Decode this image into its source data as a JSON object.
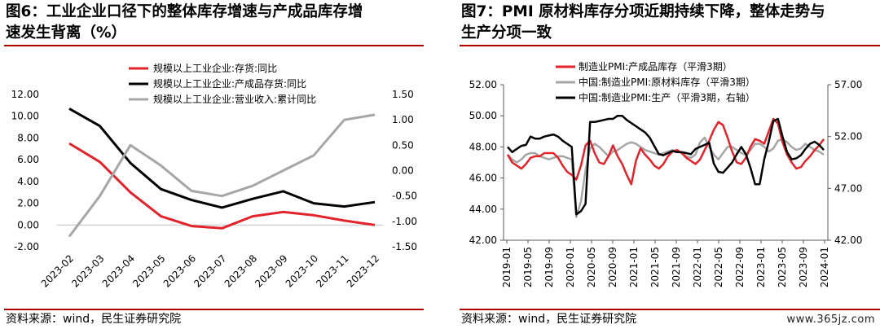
{
  "left": {
    "title_line1": "图6：工业企业口径下的整体库存增速与产成品库存增",
    "title_line2": "速发生背离（%）",
    "source": "资料来源：wind，民生证券研究院"
  },
  "right": {
    "title_line1": "图7：PMI  原材料库存分项近期持续下降，整体走势与",
    "title_line2": "生产分项一致",
    "source": "资料来源：wind，民生证券研究院"
  },
  "watermark": "www.365jz.com",
  "colors": {
    "red": "#e3232b",
    "black": "#000000",
    "gray": "#a6a6a6",
    "rule": "#b00000"
  },
  "chart_data": [
    {
      "type": "line",
      "x": [
        "2023-02",
        "2023-03",
        "2023-04",
        "2023-05",
        "2023-06",
        "2023-07",
        "2023-08",
        "2023-09",
        "2023-10",
        "2023-11",
        "2023-12"
      ],
      "y_left_ticks": [
        "-2.00",
        "0.00",
        "2.00",
        "4.00",
        "6.00",
        "8.00",
        "10.00",
        "12.00"
      ],
      "y_right_ticks": [
        "-1.50",
        "-1.00",
        "-0.50",
        "0.00",
        "0.50",
        "1.00",
        "1.50"
      ],
      "ylim_left": [
        -2,
        12
      ],
      "ylim_right": [
        -1.5,
        1.5
      ],
      "series": [
        {
          "name": "规模以上工业企业:存货:同比",
          "color": "red",
          "axis": "left",
          "values": [
            7.5,
            5.8,
            3.0,
            0.8,
            -0.1,
            -0.3,
            0.8,
            1.2,
            0.9,
            0.4,
            0.0
          ]
        },
        {
          "name": "规模以上工业企业:产成品存货:同比",
          "color": "black",
          "axis": "left",
          "values": [
            10.7,
            9.1,
            5.7,
            3.3,
            2.3,
            1.6,
            2.4,
            3.1,
            2.0,
            1.7,
            2.1
          ]
        },
        {
          "name": "规模以上工业企业:营业收入:累计同比",
          "color": "gray",
          "axis": "right",
          "values": [
            -1.3,
            -0.5,
            0.5,
            0.1,
            -0.4,
            -0.5,
            -0.3,
            0.0,
            0.3,
            1.0,
            1.1
          ]
        }
      ]
    },
    {
      "type": "line",
      "x_ticks": [
        "2019-01",
        "2019-05",
        "2019-09",
        "2020-01",
        "2020-05",
        "2020-09",
        "2021-01",
        "2021-05",
        "2021-09",
        "2022-01",
        "2022-05",
        "2022-09",
        "2023-01",
        "2023-05",
        "2023-09",
        "2024-01"
      ],
      "y_left_ticks": [
        "42.00",
        "44.00",
        "46.00",
        "48.00",
        "50.00",
        "52.00"
      ],
      "y_right_ticks": [
        "42.00",
        "47.00",
        "52.00",
        "57.00"
      ],
      "ylim_left": [
        42,
        52
      ],
      "ylim_right": [
        42,
        57
      ],
      "series": [
        {
          "name": "制造业PMI:产成品库存（平滑3期）",
          "color": "red",
          "axis": "left",
          "values": [
            47.5,
            47.0,
            46.8,
            46.6,
            46.9,
            47.3,
            47.4,
            47.4,
            47.6,
            47.6,
            47.6,
            47.3,
            46.8,
            46.4,
            46.2,
            45.9,
            46.8,
            48.1,
            48.4,
            47.6,
            47.0,
            46.9,
            47.4,
            48.1,
            47.4,
            46.9,
            46.2,
            45.6,
            47.1,
            47.9,
            47.5,
            47.2,
            46.8,
            46.6,
            46.9,
            47.4,
            47.7,
            47.8,
            47.6,
            47.3,
            47.1,
            46.9,
            47.2,
            47.8,
            48.4,
            49.1,
            49.6,
            49.4,
            48.6,
            47.7,
            47.0,
            46.9,
            47.3,
            48.0,
            48.5,
            48.4,
            48.2,
            49.0,
            49.8,
            49.5,
            48.3,
            47.5,
            47.0,
            46.6,
            46.7,
            47.1,
            47.4,
            47.8,
            48.1,
            48.5
          ]
        },
        {
          "name": "中国:制造业PMI:原材料库存（平滑3期）",
          "color": "gray",
          "axis": "left",
          "values": [
            47.5,
            47.2,
            47.0,
            47.2,
            47.5,
            47.6,
            47.6,
            47.4,
            47.3,
            47.2,
            47.3,
            47.4,
            47.4,
            47.3,
            47.2,
            43.5,
            44.5,
            46.5,
            47.9,
            48.2,
            48.0,
            47.7,
            47.4,
            47.7,
            47.8,
            48.0,
            48.2,
            48.3,
            48.2,
            48.0,
            47.8,
            47.7,
            47.6,
            47.5,
            47.6,
            47.7,
            47.8,
            47.7,
            47.6,
            47.4,
            47.3,
            47.5,
            48.3,
            48.6,
            48.0,
            47.5,
            47.2,
            47.6,
            48.0,
            48.0,
            47.8,
            47.6,
            47.5,
            47.8,
            48.2,
            48.2,
            48.0,
            47.7,
            47.9,
            48.4,
            48.5,
            48.3,
            48.0,
            47.8,
            47.9,
            48.2,
            48.0,
            47.8,
            47.7,
            47.5
          ]
        },
        {
          "name": "中国:制造业PMI:生产（平滑3期，右轴）",
          "color": "black",
          "axis": "right",
          "values": [
            51.0,
            50.5,
            50.8,
            51.1,
            51.2,
            52.0,
            51.8,
            51.8,
            52.0,
            52.1,
            52.2,
            52.0,
            51.6,
            51.3,
            51.0,
            44.5,
            44.8,
            45.5,
            53.4,
            53.4,
            53.5,
            53.6,
            53.7,
            53.7,
            54.0,
            54.0,
            53.6,
            53.3,
            53.0,
            52.7,
            52.4,
            51.9,
            51.1,
            50.3,
            50.2,
            50.4,
            50.6,
            50.5,
            50.5,
            50.4,
            50.3,
            50.8,
            51.0,
            51.2,
            51.4,
            49.4,
            48.6,
            48.5,
            49.0,
            49.5,
            50.3,
            51.0,
            50.3,
            49.0,
            47.4,
            47.4,
            49.8,
            51.5,
            53.5,
            53.7,
            52.0,
            50.5,
            49.8,
            49.9,
            50.2,
            50.8,
            51.3,
            51.5,
            51.2,
            50.7
          ]
        }
      ]
    }
  ]
}
